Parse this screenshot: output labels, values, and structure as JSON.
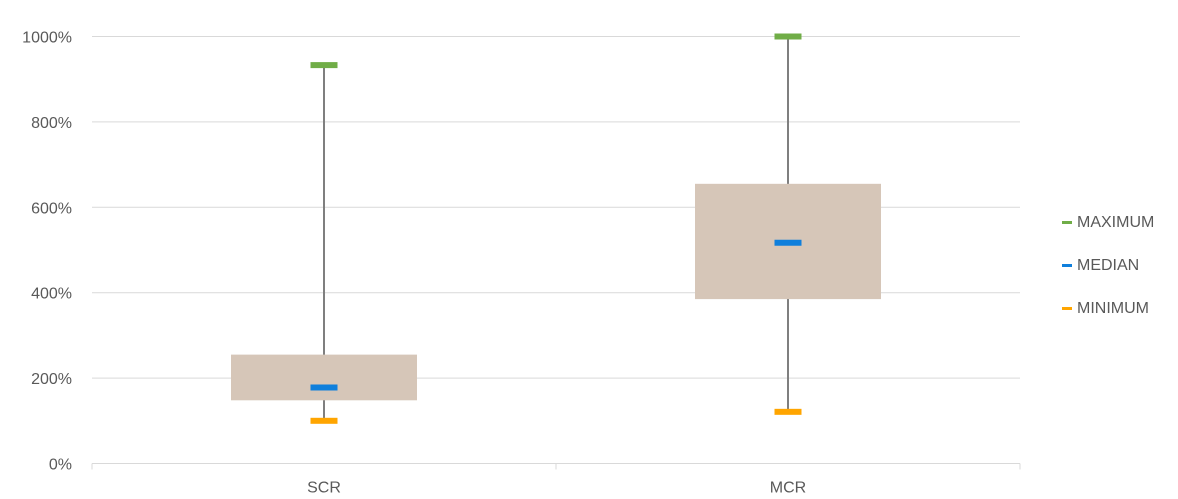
{
  "chart_data": {
    "type": "box",
    "categories": [
      "SCR",
      "MCR"
    ],
    "y_ticks": [
      "0%",
      "200%",
      "400%",
      "600%",
      "800%",
      "1000%"
    ],
    "ylim": [
      0,
      1000
    ],
    "unit": "%",
    "grid": true,
    "legend_position": "right",
    "boxes": [
      {
        "category": "SCR",
        "minimum": 100,
        "q1": 148,
        "median": 178,
        "q3": 255,
        "maximum": 933
      },
      {
        "category": "MCR",
        "minimum": 121,
        "q1": 385,
        "median": 517,
        "q3": 655,
        "maximum": 1000
      }
    ],
    "legend": [
      {
        "label": "MAXIMUM",
        "color": "#70ad47"
      },
      {
        "label": "MEDIAN",
        "color": "#0f7fdc"
      },
      {
        "label": "MINIMUM",
        "color": "#ffa500"
      }
    ],
    "colors": {
      "box": "#d6c6b8",
      "whisker": "#7f7f7f",
      "maximum": "#70ad47",
      "median": "#0f7fdc",
      "minimum": "#ffa500",
      "grid": "#d9d9d9",
      "axis_text": "#595959"
    }
  }
}
